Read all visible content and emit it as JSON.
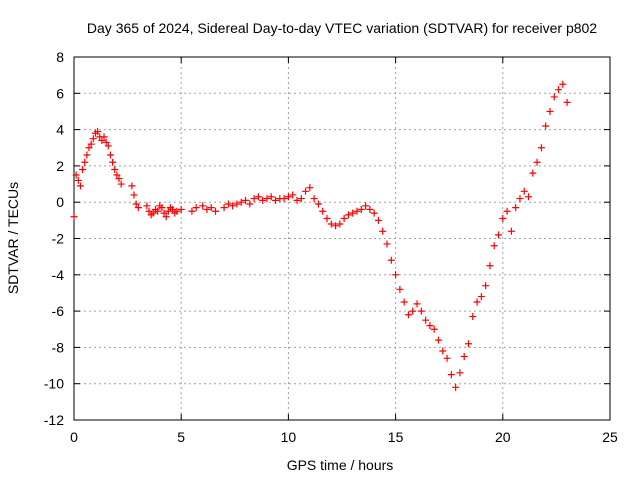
{
  "chart_data": {
    "type": "scatter",
    "title": "Day 365 of 2024, Sidereal Day-to-day VTEC variation (SDTVAR) for receiver p802",
    "xlabel": "GPS time / hours",
    "ylabel": "SDTVAR / TECUs",
    "xlim": [
      0,
      25
    ],
    "ylim": [
      -12,
      8
    ],
    "xticks": [
      0,
      5,
      10,
      15,
      20,
      25
    ],
    "yticks": [
      -12,
      -10,
      -8,
      -6,
      -4,
      -2,
      0,
      2,
      4,
      6,
      8
    ],
    "grid": true,
    "marker": "+",
    "series_color": "#ff0000",
    "series": [
      {
        "name": "SDTVAR",
        "x": [
          0.0,
          0.1,
          0.2,
          0.3,
          0.4,
          0.5,
          0.6,
          0.7,
          0.8,
          0.9,
          1.0,
          1.1,
          1.2,
          1.3,
          1.4,
          1.5,
          1.6,
          1.7,
          1.8,
          1.9,
          2.0,
          2.1,
          2.2,
          2.7,
          2.8,
          2.9,
          3.0,
          3.4,
          3.5,
          3.6,
          3.7,
          3.8,
          3.9,
          4.0,
          4.1,
          4.2,
          4.3,
          4.4,
          4.5,
          4.6,
          4.7,
          4.8,
          5.0,
          5.5,
          5.7,
          6.0,
          6.2,
          6.4,
          6.6,
          7.0,
          7.2,
          7.4,
          7.6,
          7.8,
          8.0,
          8.2,
          8.4,
          8.6,
          8.8,
          9.0,
          9.2,
          9.4,
          9.6,
          9.8,
          10.0,
          10.2,
          10.4,
          10.6,
          10.8,
          11.0,
          11.2,
          11.4,
          11.6,
          11.8,
          12.0,
          12.2,
          12.4,
          12.6,
          12.8,
          13.0,
          13.2,
          13.4,
          13.6,
          13.8,
          14.0,
          14.2,
          14.4,
          14.6,
          14.8,
          15.0,
          15.2,
          15.4,
          15.6,
          15.8,
          16.0,
          16.2,
          16.4,
          16.6,
          16.8,
          17.0,
          17.2,
          17.4,
          17.6,
          17.8,
          18.0,
          18.2,
          18.4,
          18.6,
          18.8,
          19.0,
          19.2,
          19.4,
          19.6,
          19.8,
          20.0,
          20.2,
          20.4,
          20.6,
          20.8,
          21.0,
          21.2,
          21.4,
          21.6,
          21.8,
          22.0,
          22.2,
          22.4,
          22.6,
          22.8,
          23.0
        ],
        "values": [
          -0.8,
          1.5,
          1.2,
          0.9,
          1.8,
          2.2,
          2.6,
          3.0,
          3.2,
          3.5,
          3.8,
          3.9,
          3.6,
          3.4,
          3.6,
          3.3,
          3.1,
          2.6,
          2.2,
          1.8,
          1.5,
          1.3,
          1.0,
          0.9,
          0.4,
          -0.1,
          -0.3,
          -0.2,
          -0.5,
          -0.7,
          -0.6,
          -0.4,
          -0.5,
          -0.2,
          -0.3,
          -0.6,
          -0.8,
          -0.5,
          -0.3,
          -0.4,
          -0.6,
          -0.5,
          -0.4,
          -0.5,
          -0.3,
          -0.2,
          -0.4,
          -0.3,
          -0.5,
          -0.3,
          -0.1,
          -0.2,
          -0.1,
          0.0,
          0.1,
          -0.1,
          0.2,
          0.3,
          0.1,
          0.2,
          0.3,
          0.1,
          0.2,
          0.2,
          0.3,
          0.4,
          0.1,
          0.2,
          0.6,
          0.8,
          0.2,
          -0.1,
          -0.5,
          -0.9,
          -1.2,
          -1.3,
          -1.2,
          -0.9,
          -0.7,
          -0.6,
          -0.5,
          -0.4,
          -0.2,
          -0.4,
          -0.6,
          -1.0,
          -1.6,
          -2.3,
          -3.2,
          -4.0,
          -4.8,
          -5.5,
          -6.2,
          -6.0,
          -5.6,
          -6.0,
          -6.5,
          -6.8,
          -7.0,
          -7.6,
          -8.2,
          -8.6,
          -9.5,
          -10.2,
          -9.4,
          -8.5,
          -7.8,
          -6.3,
          -5.5,
          -5.2,
          -4.6,
          -3.5,
          -2.4,
          -1.8,
          -0.9,
          -0.5,
          -1.6,
          -0.3,
          0.2,
          0.6,
          0.3,
          1.6,
          2.2,
          3.0,
          4.2,
          5.0,
          5.8,
          6.2,
          6.5,
          5.5
        ]
      }
    ]
  }
}
